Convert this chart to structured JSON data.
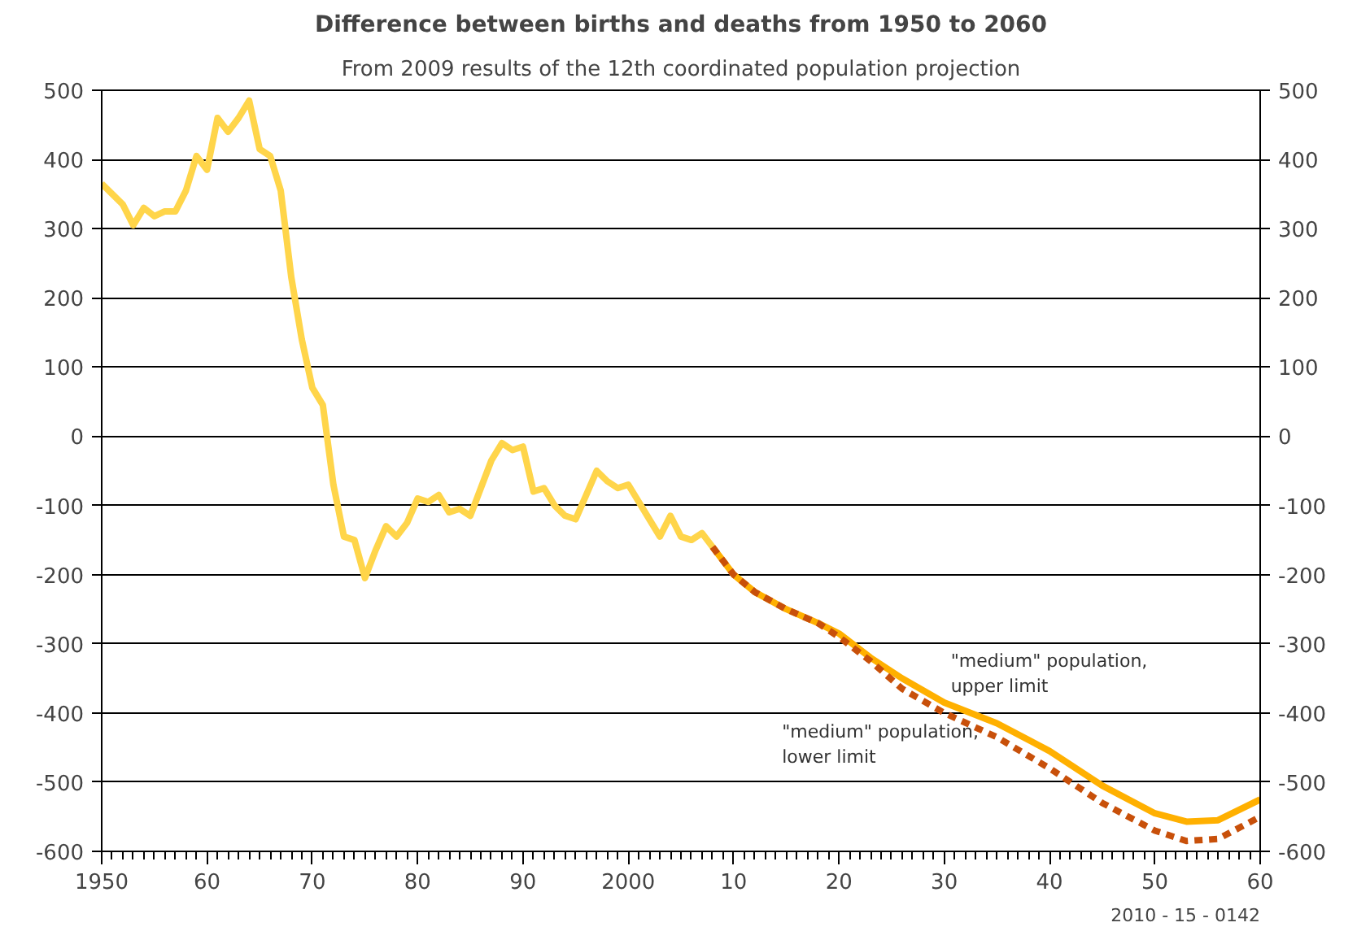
{
  "chart_data": {
    "type": "line",
    "title": "Difference between births and deaths from 1950 to 2060",
    "subtitle": "From 2009 results of the 12th coordinated population projection",
    "xlim": [
      1950,
      2060
    ],
    "xticks": [
      {
        "value": 1950,
        "label": "1950"
      },
      {
        "value": 1960,
        "label": "60"
      },
      {
        "value": 1970,
        "label": "70"
      },
      {
        "value": 1980,
        "label": "80"
      },
      {
        "value": 1990,
        "label": "90"
      },
      {
        "value": 2000,
        "label": "2000"
      },
      {
        "value": 2010,
        "label": "10"
      },
      {
        "value": 2020,
        "label": "20"
      },
      {
        "value": 2030,
        "label": "30"
      },
      {
        "value": 2040,
        "label": "40"
      },
      {
        "value": 2050,
        "label": "50"
      },
      {
        "value": 2060,
        "label": "60"
      }
    ],
    "ylim": [
      -600,
      500
    ],
    "yticks": [
      500,
      400,
      300,
      200,
      100,
      0,
      -100,
      -200,
      -300,
      -400,
      -500,
      -600
    ],
    "y2lim": [
      -600,
      500
    ],
    "y2ticks": [
      500,
      400,
      300,
      200,
      100,
      0,
      -100,
      -200,
      -300,
      -400,
      -500,
      -600
    ],
    "grid": "y",
    "legend": false,
    "series": [
      {
        "color": "#ffd54a",
        "line_style": "solid",
        "x": [
          1950,
          1951,
          1952,
          1953,
          1954,
          1955,
          1956,
          1957,
          1958,
          1959,
          1960,
          1961,
          1962,
          1963,
          1964,
          1965,
          1966,
          1967,
          1968,
          1969,
          1970,
          1971,
          1972,
          1973,
          1974,
          1975,
          1976,
          1977,
          1978,
          1979,
          1980,
          1981,
          1982,
          1983,
          1984,
          1985,
          1986,
          1987,
          1988,
          1989,
          1990,
          1991,
          1992,
          1993,
          1994,
          1995,
          1996,
          1997,
          1998,
          1999,
          2000,
          2001,
          2002,
          2003,
          2004,
          2005,
          2006,
          2007,
          2008
        ],
        "values": [
          365,
          350,
          335,
          305,
          330,
          318,
          325,
          325,
          355,
          405,
          385,
          460,
          440,
          460,
          485,
          415,
          405,
          355,
          230,
          140,
          70,
          45,
          -70,
          -145,
          -150,
          -205,
          -165,
          -130,
          -145,
          -125,
          -90,
          -95,
          -85,
          -110,
          -105,
          -115,
          -75,
          -35,
          -10,
          -20,
          -15,
          -80,
          -75,
          -100,
          -115,
          -120,
          -85,
          -50,
          -65,
          -75,
          -70,
          -95,
          -120,
          -145,
          -115,
          -145,
          -150,
          -140,
          -160
        ]
      },
      {
        "name": "\"medium\" population,\nupper limit",
        "color": "#ffb000",
        "line_style": "solid",
        "x": [
          2008,
          2010,
          2012,
          2015,
          2018,
          2020,
          2023,
          2026,
          2030,
          2035,
          2040,
          2045,
          2050,
          2053,
          2056,
          2060
        ],
        "values": [
          -160,
          -200,
          -225,
          -250,
          -270,
          -285,
          -320,
          -350,
          -385,
          -415,
          -455,
          -505,
          -545,
          -557,
          -555,
          -525
        ]
      },
      {
        "name": "\"medium\" population,\nlower limit",
        "color": "#c8500a",
        "line_style": "dashed",
        "x": [
          2008,
          2010,
          2012,
          2015,
          2018,
          2020,
          2023,
          2026,
          2030,
          2035,
          2040,
          2045,
          2050,
          2053,
          2056,
          2060
        ],
        "values": [
          -160,
          -200,
          -225,
          -250,
          -270,
          -290,
          -325,
          -365,
          -400,
          -435,
          -480,
          -530,
          -570,
          -585,
          -582,
          -550
        ]
      }
    ],
    "annotations": [
      "2010 - 15 - 0142"
    ]
  }
}
